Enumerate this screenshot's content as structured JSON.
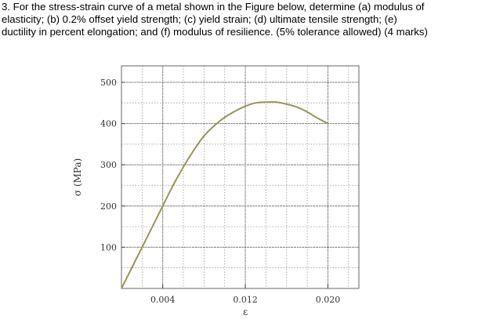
{
  "question": {
    "lines": [
      "3. For the stress-strain curve of a metal shown in the Figure below, determine (a) modulus of",
      "elasticity; (b) 0.2% offset yield strength; (c) yield strain; (d) ultimate tensile strength; (e)",
      "ductility in percent elongation; and (f) modulus of resilience. (5% tolerance allowed) (4 marks)"
    ]
  },
  "chart_data": {
    "type": "line",
    "title": "",
    "xlabel": "ε",
    "ylabel": "σ (MPa)",
    "xlim": [
      0,
      0.023
    ],
    "ylim": [
      0,
      540
    ],
    "x_ticks": [
      0.004,
      0.012,
      0.02
    ],
    "x_tick_labels": [
      "0.004",
      "0.012",
      "0.020"
    ],
    "y_ticks": [
      100,
      200,
      300,
      400,
      500
    ],
    "y_tick_labels": [
      "100",
      "200",
      "300",
      "400",
      "500"
    ],
    "x_minor_step": 0.002,
    "y_minor_step": 50,
    "grid": true,
    "legend": "none",
    "line_color": "#9a9455",
    "series": [
      {
        "x": [
          0,
          0.002,
          0.004,
          0.005,
          0.006,
          0.007,
          0.008,
          0.009,
          0.01,
          0.011,
          0.012,
          0.013,
          0.014,
          0.015,
          0.016,
          0.017,
          0.018,
          0.019,
          0.02
        ],
        "y": [
          0,
          100,
          200,
          250,
          295,
          335,
          370,
          395,
          415,
          430,
          442,
          450,
          452,
          452,
          447,
          440,
          428,
          413,
          400
        ]
      }
    ]
  }
}
